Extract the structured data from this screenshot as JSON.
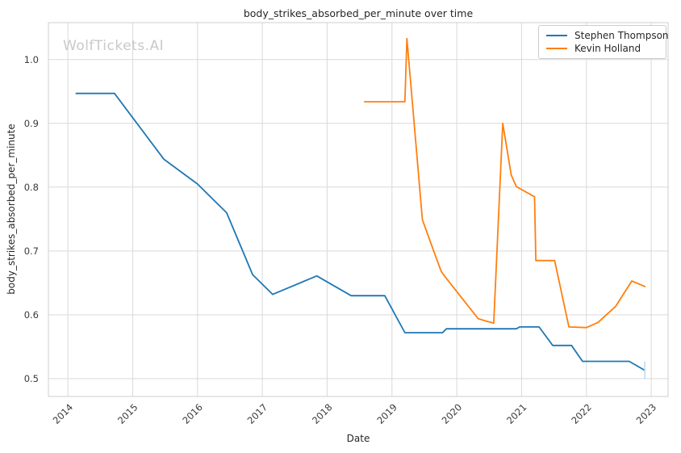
{
  "figure": {
    "watermark": "WolfTickets.AI"
  },
  "chart_data": {
    "type": "line",
    "title": "body_strikes_absorbed_per_minute over time",
    "xlabel": "Date",
    "ylabel": "body_strikes_absorbed_per_minute",
    "xlim": [
      2013.7,
      2023.26
    ],
    "ylim": [
      0.472,
      1.058
    ],
    "grid": true,
    "legend_position": "upper right",
    "x_ticks": [
      2014,
      2015,
      2016,
      2017,
      2018,
      2019,
      2020,
      2021,
      2022,
      2023
    ],
    "x_tick_labels": [
      "2014",
      "2015",
      "2016",
      "2017",
      "2018",
      "2019",
      "2020",
      "2021",
      "2022",
      "2023"
    ],
    "y_ticks": [
      0.5,
      0.6,
      0.7,
      0.8,
      0.9,
      1.0
    ],
    "y_tick_labels": [
      "0.5",
      "0.6",
      "0.7",
      "0.8",
      "0.9",
      "1.0"
    ],
    "series": [
      {
        "name": "Stephen Thompson",
        "color": "#1f77b4",
        "points": [
          [
            2014.12,
            0.947
          ],
          [
            2014.72,
            0.947
          ],
          [
            2015.48,
            0.844
          ],
          [
            2016.0,
            0.805
          ],
          [
            2016.45,
            0.76
          ],
          [
            2016.85,
            0.663
          ],
          [
            2017.16,
            0.632
          ],
          [
            2017.84,
            0.661
          ],
          [
            2018.37,
            0.63
          ],
          [
            2018.89,
            0.63
          ],
          [
            2019.2,
            0.572
          ],
          [
            2019.78,
            0.572
          ],
          [
            2019.84,
            0.578
          ],
          [
            2020.92,
            0.578
          ],
          [
            2020.97,
            0.581
          ],
          [
            2021.27,
            0.581
          ],
          [
            2021.48,
            0.552
          ],
          [
            2021.77,
            0.552
          ],
          [
            2021.94,
            0.527
          ],
          [
            2022.66,
            0.527
          ],
          [
            2022.9,
            0.513
          ]
        ]
      },
      {
        "name": "Kevin Holland",
        "color": "#ff7f0e",
        "points": [
          [
            2018.57,
            0.934
          ],
          [
            2019.2,
            0.934
          ],
          [
            2019.23,
            1.033
          ],
          [
            2019.47,
            0.749
          ],
          [
            2019.64,
            0.701
          ],
          [
            2019.76,
            0.668
          ],
          [
            2019.81,
            0.661
          ],
          [
            2020.33,
            0.594
          ],
          [
            2020.46,
            0.59
          ],
          [
            2020.57,
            0.587
          ],
          [
            2020.71,
            0.9
          ],
          [
            2020.84,
            0.819
          ],
          [
            2020.92,
            0.801
          ],
          [
            2021.2,
            0.785
          ],
          [
            2021.22,
            0.685
          ],
          [
            2021.51,
            0.685
          ],
          [
            2021.73,
            0.581
          ],
          [
            2022.0,
            0.58
          ],
          [
            2022.18,
            0.588
          ],
          [
            2022.45,
            0.613
          ],
          [
            2022.7,
            0.653
          ],
          [
            2022.91,
            0.644
          ]
        ]
      }
    ],
    "end_marker": {
      "series": 0,
      "x": 2022.9,
      "y_top": 0.527,
      "y_bottom": 0.5,
      "color": "#bcd9ed"
    },
    "colors": {
      "grid": "#d9d9d9",
      "spine": "#cfcfcf",
      "text": "#262626",
      "tick_text": "#3a3a3a",
      "watermark": "#c9c9c9",
      "legend_border": "#cccccc",
      "background": "#ffffff"
    }
  }
}
